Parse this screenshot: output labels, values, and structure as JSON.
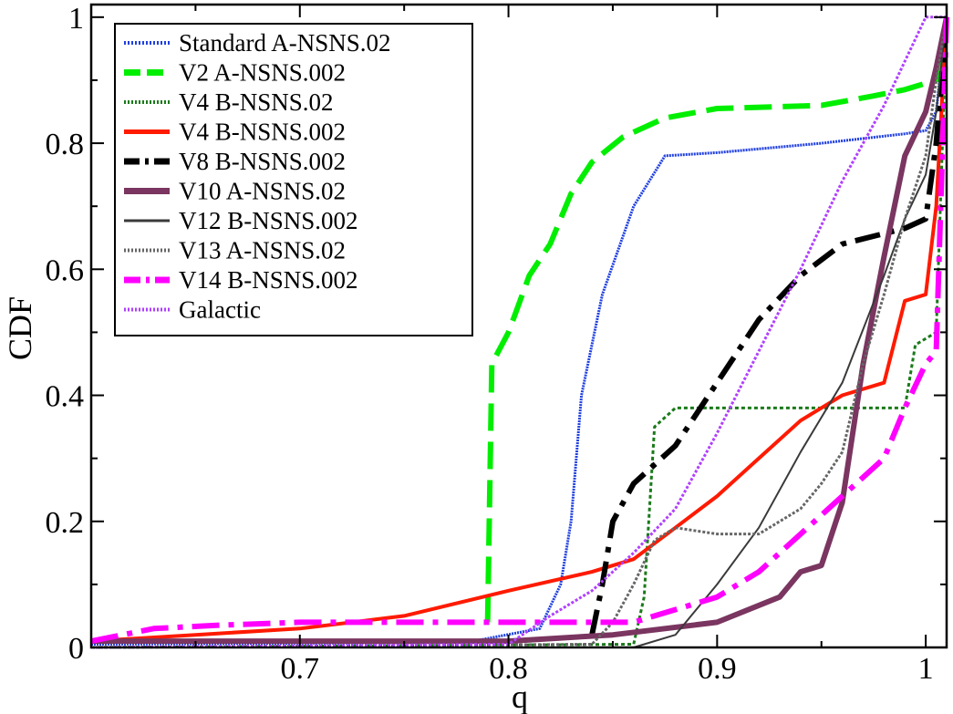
{
  "chart_data": {
    "type": "line",
    "title": "",
    "xlabel": "q",
    "ylabel": "CDF",
    "xlim": [
      0.6,
      1.01
    ],
    "ylim": [
      0,
      1.02
    ],
    "xticks": [
      {
        "value": 0.7,
        "label": "0.7"
      },
      {
        "value": 0.8,
        "label": "0.8"
      },
      {
        "value": 0.9,
        "label": "0.9"
      },
      {
        "value": 1.0,
        "label": "1"
      }
    ],
    "yticks": [
      {
        "value": 0,
        "label": "0"
      },
      {
        "value": 0.2,
        "label": "0.2"
      },
      {
        "value": 0.4,
        "label": "0.4"
      },
      {
        "value": 0.6,
        "label": "0.6"
      },
      {
        "value": 0.8,
        "label": "0.8"
      },
      {
        "value": 1.0,
        "label": "1"
      }
    ],
    "grid": false,
    "legend_position": "top-left",
    "series": [
      {
        "name": "Standard A-NSNS.02",
        "color": "#1f3fe0",
        "dash": "2,1",
        "width": 3,
        "points": [
          [
            0.6,
            0.005
          ],
          [
            0.78,
            0.008
          ],
          [
            0.815,
            0.03
          ],
          [
            0.825,
            0.1
          ],
          [
            0.83,
            0.2
          ],
          [
            0.835,
            0.4
          ],
          [
            0.845,
            0.56
          ],
          [
            0.86,
            0.7
          ],
          [
            0.875,
            0.78
          ],
          [
            0.9,
            0.785
          ],
          [
            0.95,
            0.8
          ],
          [
            0.99,
            0.815
          ],
          [
            1.0,
            0.82
          ],
          [
            1.005,
            0.85
          ],
          [
            1.01,
            1.0
          ]
        ]
      },
      {
        "name": "V2 A-NSNS.002",
        "color": "#00ee00",
        "dash": "30,12",
        "width": 6,
        "points": [
          [
            0.79,
            0.04
          ],
          [
            0.792,
            0.45
          ],
          [
            0.8,
            0.5
          ],
          [
            0.81,
            0.59
          ],
          [
            0.82,
            0.64
          ],
          [
            0.83,
            0.72
          ],
          [
            0.84,
            0.77
          ],
          [
            0.855,
            0.81
          ],
          [
            0.875,
            0.84
          ],
          [
            0.9,
            0.855
          ],
          [
            0.95,
            0.86
          ],
          [
            0.975,
            0.875
          ],
          [
            0.99,
            0.885
          ],
          [
            1.005,
            0.9
          ],
          [
            1.01,
            1.0
          ]
        ]
      },
      {
        "name": "V4 B-NSNS.02",
        "color": "#1a7a1a",
        "dash": "4,3",
        "width": 3,
        "points": [
          [
            0.6,
            0.0
          ],
          [
            0.86,
            0.005
          ],
          [
            0.865,
            0.08
          ],
          [
            0.87,
            0.35
          ],
          [
            0.88,
            0.38
          ],
          [
            0.95,
            0.38
          ],
          [
            0.99,
            0.38
          ],
          [
            0.995,
            0.48
          ],
          [
            1.0,
            0.49
          ],
          [
            1.005,
            0.5
          ],
          [
            1.01,
            1.0
          ]
        ]
      },
      {
        "name": "V4 B-NSNS.002",
        "color": "#ff1a00",
        "dash": "",
        "width": 4,
        "points": [
          [
            0.6,
            0.01
          ],
          [
            0.65,
            0.02
          ],
          [
            0.7,
            0.03
          ],
          [
            0.75,
            0.05
          ],
          [
            0.8,
            0.09
          ],
          [
            0.84,
            0.12
          ],
          [
            0.86,
            0.14
          ],
          [
            0.88,
            0.19
          ],
          [
            0.9,
            0.24
          ],
          [
            0.92,
            0.3
          ],
          [
            0.94,
            0.36
          ],
          [
            0.96,
            0.4
          ],
          [
            0.98,
            0.42
          ],
          [
            0.99,
            0.55
          ],
          [
            1.0,
            0.56
          ],
          [
            1.005,
            0.7
          ],
          [
            1.01,
            1.0
          ]
        ]
      },
      {
        "name": "V8 B-NSNS.002",
        "color": "#000000",
        "dash": "28,10,6,10",
        "width": 6,
        "points": [
          [
            0.84,
            0.02
          ],
          [
            0.845,
            0.1
          ],
          [
            0.85,
            0.2
          ],
          [
            0.86,
            0.26
          ],
          [
            0.88,
            0.32
          ],
          [
            0.9,
            0.42
          ],
          [
            0.92,
            0.52
          ],
          [
            0.94,
            0.59
          ],
          [
            0.96,
            0.64
          ],
          [
            0.99,
            0.665
          ],
          [
            1.0,
            0.68
          ],
          [
            1.005,
            0.8
          ],
          [
            1.01,
            1.0
          ]
        ]
      },
      {
        "name": "V10 A-NSNS.02",
        "color": "#7a3560",
        "dash": "",
        "width": 6,
        "points": [
          [
            0.6,
            0.01
          ],
          [
            0.8,
            0.01
          ],
          [
            0.85,
            0.02
          ],
          [
            0.9,
            0.04
          ],
          [
            0.93,
            0.08
          ],
          [
            0.94,
            0.12
          ],
          [
            0.95,
            0.13
          ],
          [
            0.96,
            0.23
          ],
          [
            0.97,
            0.45
          ],
          [
            0.98,
            0.62
          ],
          [
            0.99,
            0.78
          ],
          [
            1.0,
            0.85
          ],
          [
            1.005,
            0.92
          ],
          [
            1.01,
            1.0
          ]
        ]
      },
      {
        "name": "V12 B-NSNS.002",
        "color": "#3a3a3a",
        "dash": "",
        "width": 2,
        "points": [
          [
            0.6,
            0.0
          ],
          [
            0.86,
            0.0
          ],
          [
            0.88,
            0.02
          ],
          [
            0.9,
            0.1
          ],
          [
            0.92,
            0.19
          ],
          [
            0.94,
            0.31
          ],
          [
            0.96,
            0.42
          ],
          [
            0.98,
            0.59
          ],
          [
            0.99,
            0.68
          ],
          [
            1.0,
            0.75
          ],
          [
            1.005,
            0.85
          ],
          [
            1.01,
            1.0
          ]
        ]
      },
      {
        "name": "V13 A-NSNS.02",
        "color": "#666666",
        "dash": "3,2",
        "width": 3,
        "points": [
          [
            0.6,
            0.0
          ],
          [
            0.84,
            0.005
          ],
          [
            0.85,
            0.04
          ],
          [
            0.86,
            0.1
          ],
          [
            0.87,
            0.17
          ],
          [
            0.88,
            0.19
          ],
          [
            0.9,
            0.18
          ],
          [
            0.92,
            0.18
          ],
          [
            0.94,
            0.22
          ],
          [
            0.95,
            0.26
          ],
          [
            0.96,
            0.31
          ],
          [
            0.97,
            0.45
          ],
          [
            0.98,
            0.56
          ],
          [
            0.99,
            0.68
          ],
          [
            1.0,
            0.78
          ],
          [
            1.005,
            0.9
          ],
          [
            1.01,
            1.0
          ]
        ]
      },
      {
        "name": "V14 B-NSNS.002",
        "color": "#ff00ff",
        "dash": "30,10,6,10",
        "width": 6,
        "points": [
          [
            0.6,
            0.01
          ],
          [
            0.63,
            0.03
          ],
          [
            0.66,
            0.035
          ],
          [
            0.7,
            0.04
          ],
          [
            0.75,
            0.04
          ],
          [
            0.8,
            0.04
          ],
          [
            0.86,
            0.04
          ],
          [
            0.87,
            0.05
          ],
          [
            0.9,
            0.08
          ],
          [
            0.92,
            0.12
          ],
          [
            0.94,
            0.18
          ],
          [
            0.96,
            0.24
          ],
          [
            0.98,
            0.3
          ],
          [
            0.99,
            0.38
          ],
          [
            1.0,
            0.45
          ],
          [
            1.005,
            0.47
          ],
          [
            1.01,
            1.0
          ]
        ]
      },
      {
        "name": "Galactic",
        "color": "#b040ff",
        "dash": "3,2",
        "width": 3,
        "points": [
          [
            0.6,
            0.0
          ],
          [
            0.8,
            0.005
          ],
          [
            0.82,
            0.05
          ],
          [
            0.84,
            0.09
          ],
          [
            0.86,
            0.15
          ],
          [
            0.88,
            0.22
          ],
          [
            0.9,
            0.34
          ],
          [
            0.92,
            0.47
          ],
          [
            0.94,
            0.6
          ],
          [
            0.96,
            0.74
          ],
          [
            0.98,
            0.86
          ],
          [
            0.99,
            0.93
          ],
          [
            1.0,
            1.0
          ],
          [
            1.01,
            1.0
          ]
        ]
      }
    ]
  }
}
